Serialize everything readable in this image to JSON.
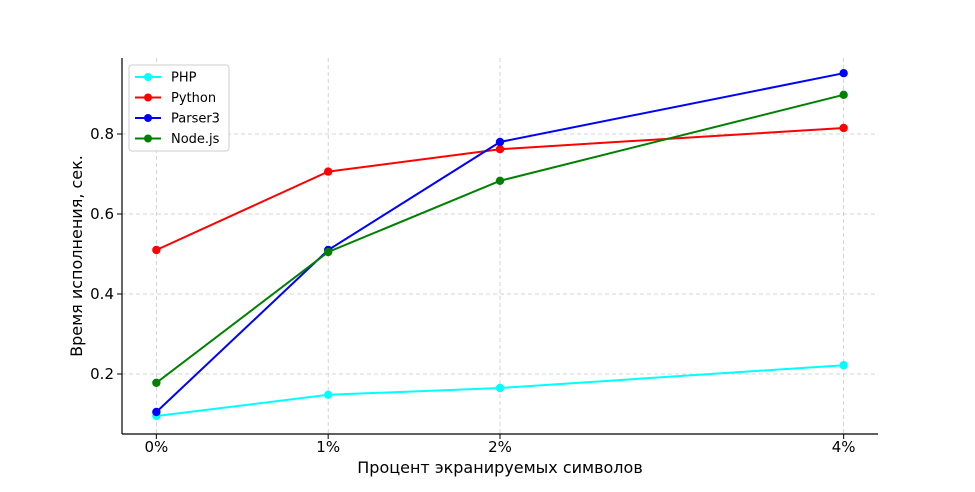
{
  "chart_data": {
    "type": "line",
    "xlabel": "Процент экранируемых символов",
    "ylabel": "Время исполнения, сек.",
    "x": [
      0,
      1,
      2,
      4
    ],
    "x_tick_labels": [
      "0%",
      "1%",
      "2%",
      "4%"
    ],
    "xlim": [
      -0.2,
      4.2
    ],
    "ylim": [
      0.05,
      0.99
    ],
    "y_ticks": [
      0.2,
      0.4,
      0.6,
      0.8
    ],
    "y_tick_labels": [
      "0.2",
      "0.4",
      "0.6",
      "0.8"
    ],
    "grid": true,
    "legend_position": "top-left",
    "series": [
      {
        "name": "PHP",
        "color": "#00ffff",
        "values": [
          0.095,
          0.148,
          0.165,
          0.222
        ]
      },
      {
        "name": "Python",
        "color": "#ff0000",
        "values": [
          0.51,
          0.706,
          0.762,
          0.815
        ]
      },
      {
        "name": "Parser3",
        "color": "#0000ff",
        "values": [
          0.105,
          0.51,
          0.78,
          0.952
        ]
      },
      {
        "name": "Node.js",
        "color": "#008000",
        "values": [
          0.178,
          0.505,
          0.683,
          0.898
        ]
      }
    ]
  }
}
